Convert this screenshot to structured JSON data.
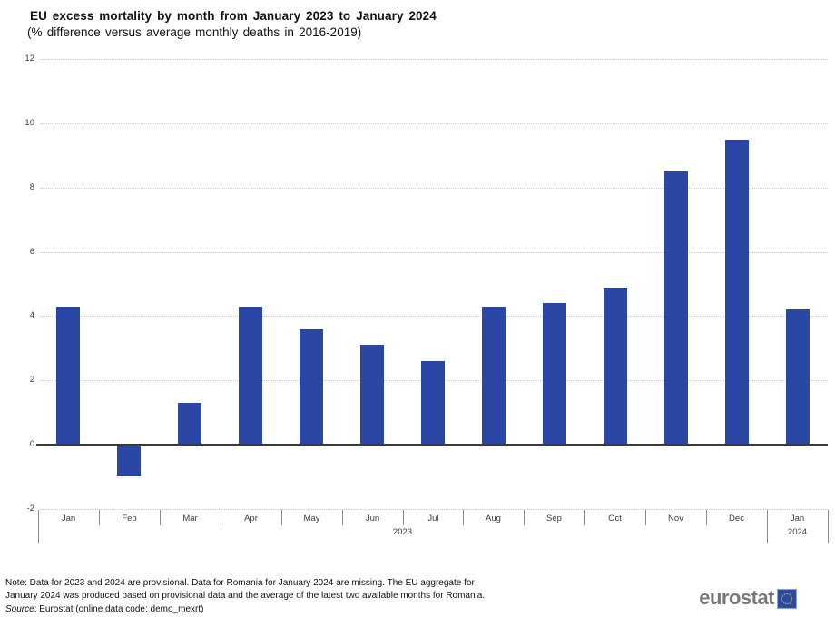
{
  "header": {
    "title": "EU excess mortality by month from January 2023 to January 2024",
    "subtitle": "(% difference versus average monthly deaths in 2016-2019)"
  },
  "chart_data": {
    "type": "bar",
    "categories": [
      "Jan",
      "Feb",
      "Mar",
      "Apr",
      "May",
      "Jun",
      "Jul",
      "Aug",
      "Sep",
      "Oct",
      "Nov",
      "Dec",
      "Jan"
    ],
    "values": [
      4.3,
      -1.0,
      1.3,
      4.3,
      3.6,
      3.1,
      2.6,
      4.3,
      4.4,
      4.9,
      8.5,
      9.5,
      4.2
    ],
    "year_groups": [
      {
        "label": "2023",
        "start": 0,
        "end": 11
      },
      {
        "label": "2024",
        "start": 12,
        "end": 12
      }
    ],
    "title": "EU excess mortality by month from January 2023 to January 2024",
    "subtitle": "(% difference versus average monthly deaths in 2016-2019)",
    "xlabel": "",
    "ylabel": "",
    "ylim": [
      -2,
      12
    ],
    "yticks": [
      -2,
      0,
      2,
      4,
      6,
      8,
      10,
      12
    ],
    "gridline_values": [
      12,
      10,
      8,
      6,
      4,
      2,
      -2
    ],
    "grid": "horizontal-dotted",
    "legend": "none",
    "bar_color": "#2a47a6",
    "gridline_color": "#c9c9c9",
    "axis_line_color": "#3a3a3a"
  },
  "footer": {
    "note_line1": "Note: Data for 2023 and 2024 are provisional. Data for Romania for January 2024 are missing. The EU aggregate for",
    "note_line2": "January 2024 was produced based on provisional data and the average of the latest two available months for Romania.",
    "source_label": "Source",
    "source_text": ": Eurostat (online data code: demo_mexrt)",
    "logo_text": "eurostat"
  }
}
